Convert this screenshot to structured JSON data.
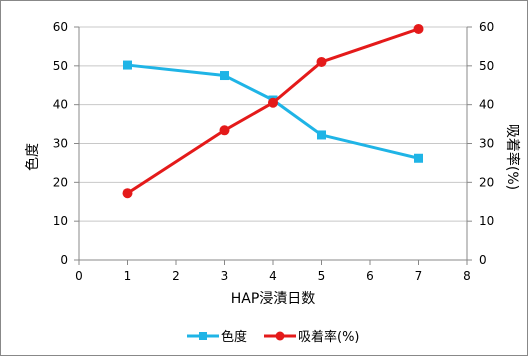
{
  "chart_data": {
    "type": "line",
    "xlabel": "HAP浸漬日数",
    "ylabel_left": "色度",
    "ylabel_right": "吸着率(%)",
    "xlim": [
      0,
      8
    ],
    "ylim_left": [
      0,
      60
    ],
    "ylim_right": [
      0,
      60
    ],
    "x_ticks": [
      "0",
      "1",
      "2",
      "3",
      "4",
      "5",
      "6",
      "7",
      "8"
    ],
    "y_ticks_left": [
      "0",
      "10",
      "20",
      "30",
      "40",
      "50",
      "60"
    ],
    "y_ticks_right": [
      "0",
      "10",
      "20",
      "30",
      "40",
      "50",
      "60"
    ],
    "grid": "horizontal major gridlines",
    "legend_position": "bottom",
    "series": [
      {
        "name": "色度",
        "axis": "left",
        "color": "#1fb4e6",
        "marker": "square",
        "x": [
          1,
          3,
          4,
          5,
          7
        ],
        "y": [
          50.2,
          47.5,
          41.2,
          32.2,
          26.2
        ]
      },
      {
        "name": "吸着率(%)",
        "axis": "right",
        "color": "#e41a1a",
        "marker": "circle",
        "x": [
          1,
          3,
          4,
          5,
          7
        ],
        "y": [
          17.2,
          33.4,
          40.5,
          51.0,
          59.5
        ]
      }
    ]
  }
}
